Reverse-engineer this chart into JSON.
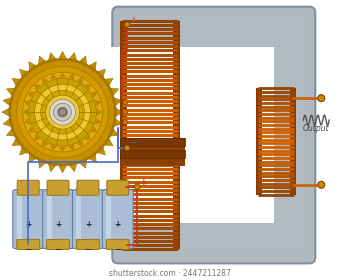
{
  "bg_color": "#ffffff",
  "core_color": "#b0b8c0",
  "core_dark": "#8090a0",
  "core_highlight": "#d0d8e0",
  "coil_color": "#d06000",
  "coil_dark": "#8b3a00",
  "coil_mid": "#c05800",
  "wire_red": "#cc3322",
  "wire_blue": "#4466cc",
  "wire_orange": "#cc6600",
  "battery_body": "#aabdd4",
  "battery_body2": "#c8daea",
  "battery_cap": "#c8a030",
  "battery_dark": "#6080a0",
  "motor_outer": "#c89000",
  "motor_mid": "#e0aa10",
  "motor_inner": "#f0c830",
  "motor_hub": "#d8d8d8",
  "motor_dark": "#907000",
  "junction_color": "#cc8800",
  "title": "Output",
  "fig_width": 3.4,
  "fig_height": 2.8,
  "dpi": 100
}
